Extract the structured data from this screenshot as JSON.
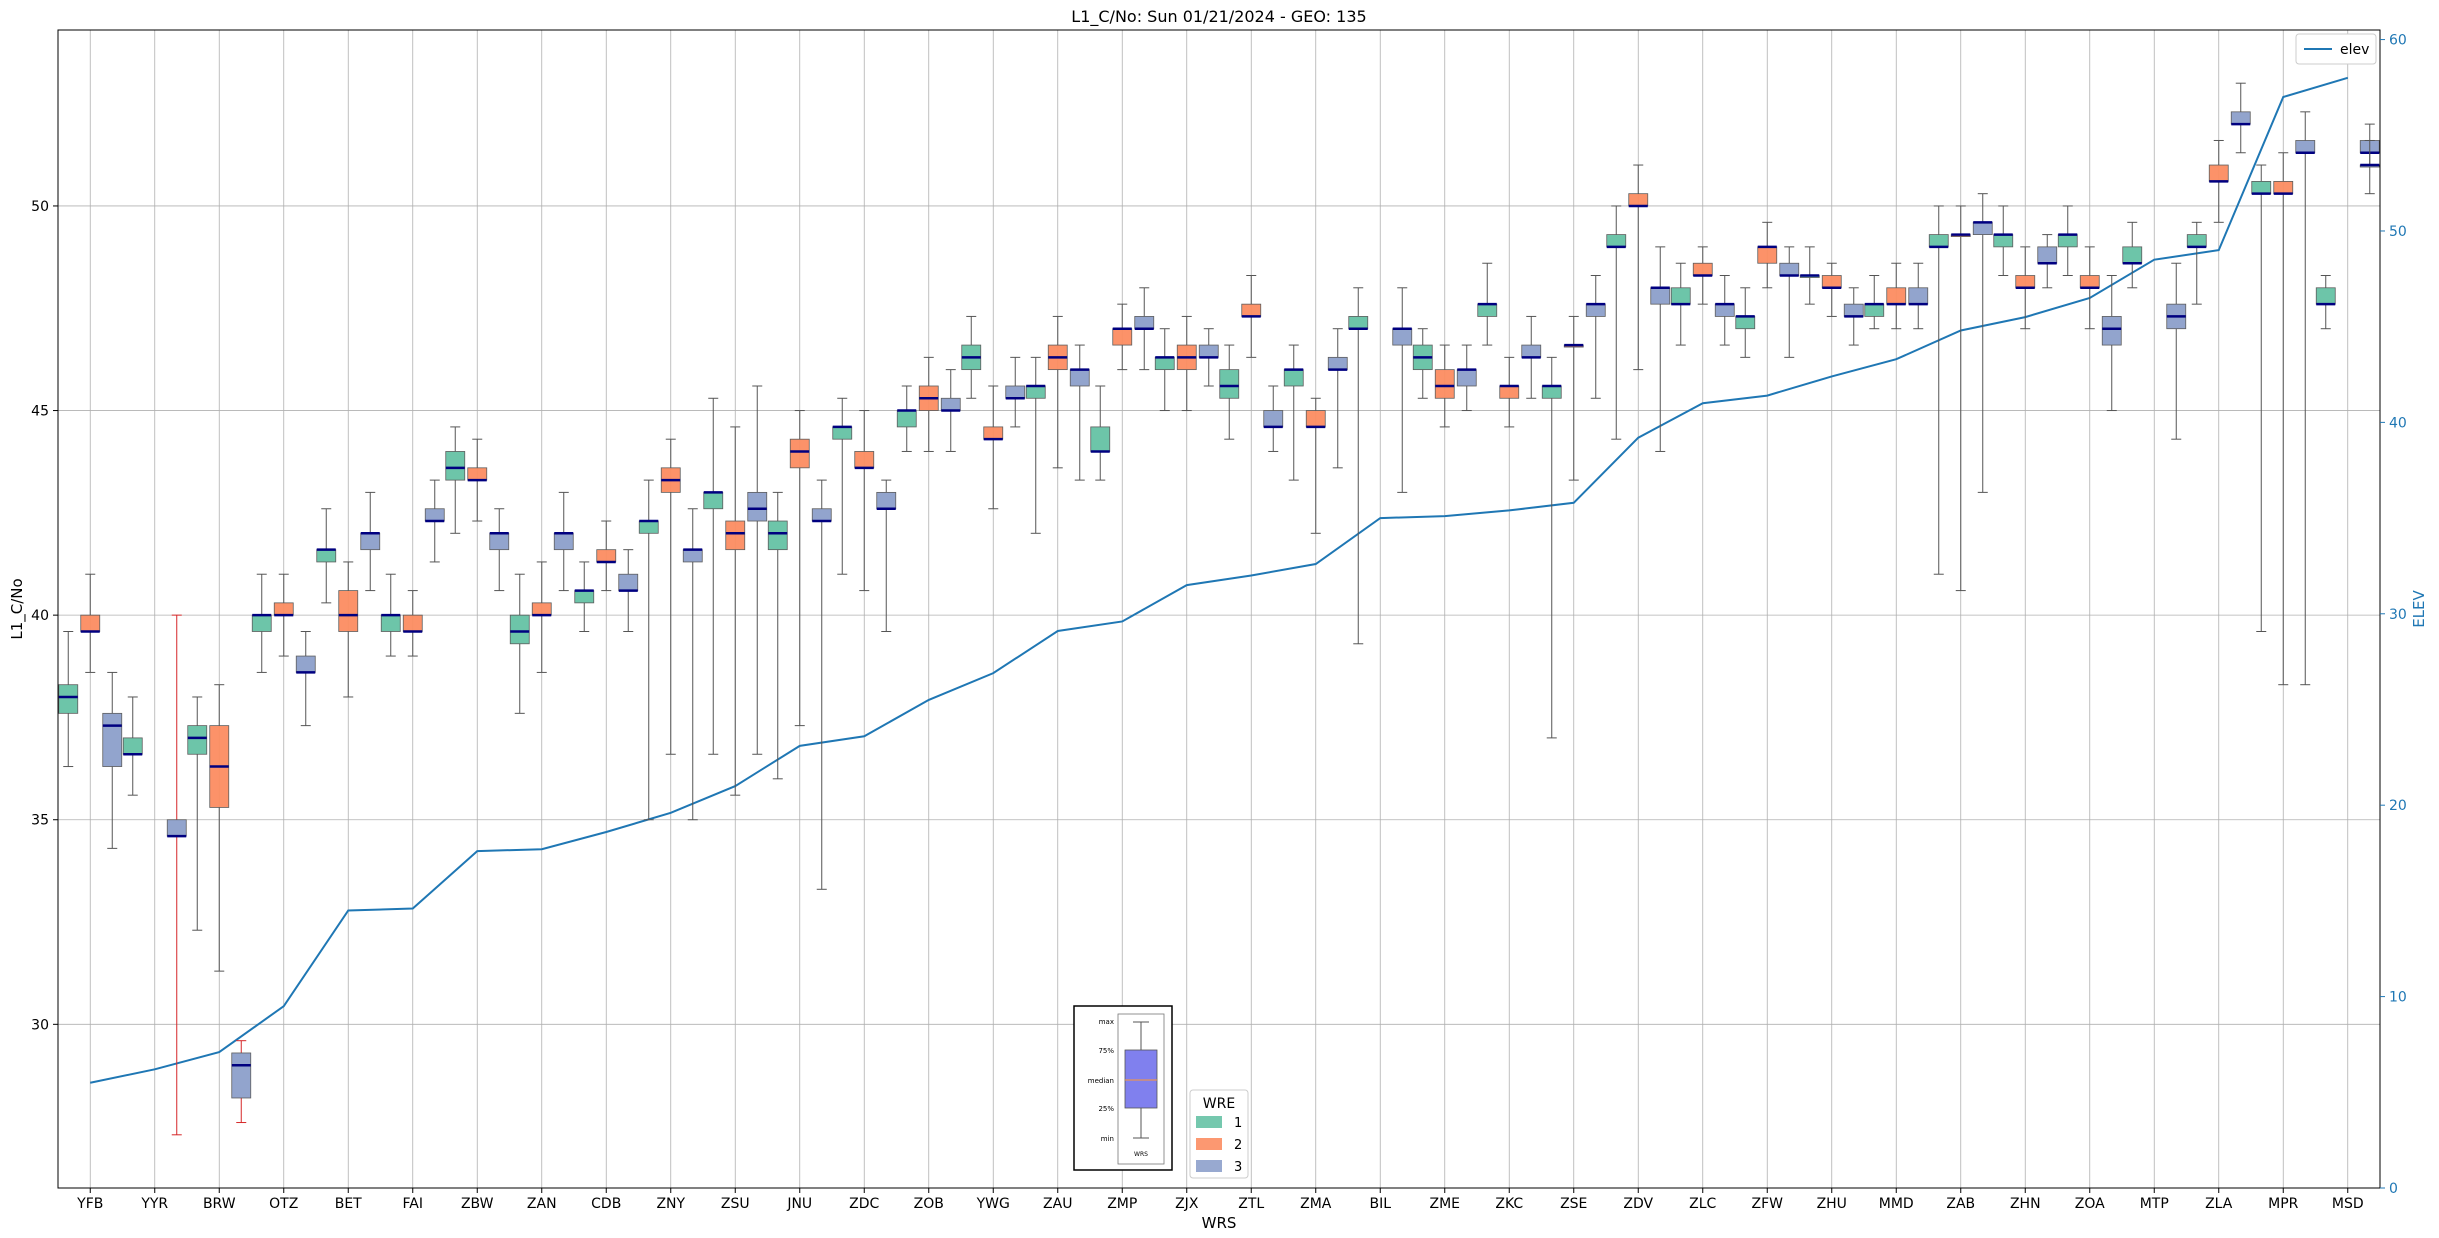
{
  "chart_data": {
    "type": "box",
    "title": "L1_C/No: Sun 01/21/2024 - GEO: 135",
    "xlabel": "WRS",
    "ylabel": "L1_C/No",
    "y2label": "ELEV",
    "ylim": [
      26.0,
      54.3
    ],
    "y2lim": [
      0,
      60.5
    ],
    "yticks": [
      30,
      35,
      40,
      45,
      50
    ],
    "y2ticks": [
      0,
      10,
      20,
      30,
      40,
      50,
      60
    ],
    "grid": true,
    "categories": [
      "YFB",
      "YYR",
      "BRW",
      "OTZ",
      "BET",
      "FAI",
      "ZBW",
      "ZAN",
      "CDB",
      "ZNY",
      "ZSU",
      "JNU",
      "ZDC",
      "ZOB",
      "YWG",
      "ZAU",
      "ZMP",
      "ZJX",
      "ZTL",
      "ZMA",
      "BIL",
      "ZME",
      "ZKC",
      "ZSE",
      "ZDV",
      "ZLC",
      "ZFW",
      "ZHU",
      "MMD",
      "ZAB",
      "ZHN",
      "ZOA",
      "MTP",
      "ZLA",
      "MPR",
      "MSD"
    ],
    "wre_legend": {
      "title": "WRE",
      "entries": [
        "1",
        "2",
        "3"
      ]
    },
    "colors": {
      "1": "#66c2a5",
      "2": "#fc8d62",
      "3": "#8da0cb",
      "median": "#000080",
      "elev_line": "#1f77b4",
      "outlier_whisker": "#d62728",
      "whisker": "#555555"
    },
    "elev_series": {
      "name": "elev",
      "values": [
        5.5,
        6.2,
        7.1,
        9.5,
        14.5,
        14.6,
        17.6,
        17.7,
        18.6,
        19.6,
        21.0,
        23.1,
        23.6,
        25.5,
        26.9,
        29.1,
        29.6,
        31.5,
        32.0,
        32.6,
        35.0,
        35.1,
        35.4,
        35.8,
        39.2,
        41.0,
        41.4,
        42.4,
        43.3,
        44.8,
        45.5,
        46.5,
        48.5,
        49.0,
        57.0,
        58.0
      ]
    },
    "boxes": [
      {
        "cat": "YFB",
        "wre": "1",
        "min": 36.3,
        "q1": 37.6,
        "med": 38.0,
        "q3": 38.3,
        "max": 39.6
      },
      {
        "cat": "YFB",
        "wre": "2",
        "min": 38.6,
        "q1": 39.6,
        "med": 39.6,
        "q3": 40.0,
        "max": 41.0
      },
      {
        "cat": "YFB",
        "wre": "3",
        "min": 34.3,
        "q1": 36.3,
        "med": 37.3,
        "q3": 37.6,
        "max": 38.6
      },
      {
        "cat": "YYR",
        "wre": "1",
        "min": 35.6,
        "q1": 36.6,
        "med": 36.6,
        "q3": 37.0,
        "max": 38.0
      },
      {
        "cat": "YYR",
        "wre": "3",
        "min": 27.3,
        "q1": 34.6,
        "med": 34.6,
        "q3": 35.0,
        "max": 40.0,
        "whisker_color": "red"
      },
      {
        "cat": "BRW",
        "wre": "1",
        "min": 32.3,
        "q1": 36.6,
        "med": 37.0,
        "q3": 37.3,
        "max": 38.0
      },
      {
        "cat": "BRW",
        "wre": "2",
        "min": 31.3,
        "q1": 35.3,
        "med": 36.3,
        "q3": 37.3,
        "max": 38.3
      },
      {
        "cat": "BRW",
        "wre": "3",
        "min": 27.6,
        "q1": 28.2,
        "med": 29.0,
        "q3": 29.3,
        "max": 29.6,
        "whisker_color": "red"
      },
      {
        "cat": "OTZ",
        "wre": "1",
        "min": 38.6,
        "q1": 39.6,
        "med": 40.0,
        "q3": 40.0,
        "max": 41.0
      },
      {
        "cat": "OTZ",
        "wre": "2",
        "min": 39.0,
        "q1": 40.0,
        "med": 40.0,
        "q3": 40.3,
        "max": 41.0
      },
      {
        "cat": "OTZ",
        "wre": "3",
        "min": 37.3,
        "q1": 38.6,
        "med": 38.6,
        "q3": 39.0,
        "max": 39.6
      },
      {
        "cat": "BET",
        "wre": "1",
        "min": 40.3,
        "q1": 41.3,
        "med": 41.6,
        "q3": 41.6,
        "max": 42.6
      },
      {
        "cat": "BET",
        "wre": "2",
        "min": 38.0,
        "q1": 39.6,
        "med": 40.0,
        "q3": 40.6,
        "max": 41.3
      },
      {
        "cat": "BET",
        "wre": "3",
        "min": 40.6,
        "q1": 41.6,
        "med": 42.0,
        "q3": 42.0,
        "max": 43.0
      },
      {
        "cat": "FAI",
        "wre": "1",
        "min": 39.0,
        "q1": 39.6,
        "med": 40.0,
        "q3": 40.0,
        "max": 41.0
      },
      {
        "cat": "FAI",
        "wre": "2",
        "min": 39.0,
        "q1": 39.6,
        "med": 39.6,
        "q3": 40.0,
        "max": 40.6
      },
      {
        "cat": "FAI",
        "wre": "3",
        "min": 41.3,
        "q1": 42.3,
        "med": 42.3,
        "q3": 42.6,
        "max": 43.3
      },
      {
        "cat": "ZBW",
        "wre": "1",
        "min": 42.0,
        "q1": 43.3,
        "med": 43.6,
        "q3": 44.0,
        "max": 44.6
      },
      {
        "cat": "ZBW",
        "wre": "2",
        "min": 42.3,
        "q1": 43.3,
        "med": 43.3,
        "q3": 43.6,
        "max": 44.3
      },
      {
        "cat": "ZBW",
        "wre": "3",
        "min": 40.6,
        "q1": 41.6,
        "med": 42.0,
        "q3": 42.0,
        "max": 42.6
      },
      {
        "cat": "ZAN",
        "wre": "1",
        "min": 37.6,
        "q1": 39.3,
        "med": 39.6,
        "q3": 40.0,
        "max": 41.0
      },
      {
        "cat": "ZAN",
        "wre": "2",
        "min": 38.6,
        "q1": 40.0,
        "med": 40.0,
        "q3": 40.3,
        "max": 41.3
      },
      {
        "cat": "ZAN",
        "wre": "3",
        "min": 40.6,
        "q1": 41.6,
        "med": 42.0,
        "q3": 42.0,
        "max": 43.0
      },
      {
        "cat": "CDB",
        "wre": "1",
        "min": 39.6,
        "q1": 40.3,
        "med": 40.6,
        "q3": 40.6,
        "max": 41.3
      },
      {
        "cat": "CDB",
        "wre": "2",
        "min": 40.6,
        "q1": 41.3,
        "med": 41.3,
        "q3": 41.6,
        "max": 42.3
      },
      {
        "cat": "CDB",
        "wre": "3",
        "min": 39.6,
        "q1": 40.6,
        "med": 40.6,
        "q3": 41.0,
        "max": 41.6
      },
      {
        "cat": "ZNY",
        "wre": "1",
        "min": 35.0,
        "q1": 42.0,
        "med": 42.3,
        "q3": 42.3,
        "max": 43.3
      },
      {
        "cat": "ZNY",
        "wre": "2",
        "min": 36.6,
        "q1": 43.0,
        "med": 43.3,
        "q3": 43.6,
        "max": 44.3
      },
      {
        "cat": "ZNY",
        "wre": "3",
        "min": 35.0,
        "q1": 41.3,
        "med": 41.6,
        "q3": 41.6,
        "max": 42.6
      },
      {
        "cat": "ZSU",
        "wre": "1",
        "min": 36.6,
        "q1": 42.6,
        "med": 43.0,
        "q3": 43.0,
        "max": 45.3
      },
      {
        "cat": "ZSU",
        "wre": "2",
        "min": 35.6,
        "q1": 41.6,
        "med": 42.0,
        "q3": 42.3,
        "max": 44.6
      },
      {
        "cat": "ZSU",
        "wre": "3",
        "min": 36.6,
        "q1": 42.3,
        "med": 42.6,
        "q3": 43.0,
        "max": 45.6
      },
      {
        "cat": "JNU",
        "wre": "1",
        "min": 36.0,
        "q1": 41.6,
        "med": 42.0,
        "q3": 42.3,
        "max": 43.0
      },
      {
        "cat": "JNU",
        "wre": "2",
        "min": 37.3,
        "q1": 43.6,
        "med": 44.0,
        "q3": 44.3,
        "max": 45.0
      },
      {
        "cat": "JNU",
        "wre": "3",
        "min": 33.3,
        "q1": 42.3,
        "med": 42.3,
        "q3": 42.6,
        "max": 43.3
      },
      {
        "cat": "ZDC",
        "wre": "1",
        "min": 41.0,
        "q1": 44.3,
        "med": 44.6,
        "q3": 44.6,
        "max": 45.3
      },
      {
        "cat": "ZDC",
        "wre": "2",
        "min": 40.6,
        "q1": 43.6,
        "med": 43.6,
        "q3": 44.0,
        "max": 45.0
      },
      {
        "cat": "ZDC",
        "wre": "3",
        "min": 39.6,
        "q1": 42.6,
        "med": 42.6,
        "q3": 43.0,
        "max": 43.3
      },
      {
        "cat": "ZOB",
        "wre": "1",
        "min": 44.0,
        "q1": 44.6,
        "med": 45.0,
        "q3": 45.0,
        "max": 45.6
      },
      {
        "cat": "ZOB",
        "wre": "2",
        "min": 44.0,
        "q1": 45.0,
        "med": 45.3,
        "q3": 45.6,
        "max": 46.3
      },
      {
        "cat": "ZOB",
        "wre": "3",
        "min": 44.0,
        "q1": 45.0,
        "med": 45.0,
        "q3": 45.3,
        "max": 46.0
      },
      {
        "cat": "YWG",
        "wre": "1",
        "min": 45.3,
        "q1": 46.0,
        "med": 46.3,
        "q3": 46.6,
        "max": 47.3
      },
      {
        "cat": "YWG",
        "wre": "2",
        "min": 42.6,
        "q1": 44.3,
        "med": 44.3,
        "q3": 44.6,
        "max": 45.6
      },
      {
        "cat": "YWG",
        "wre": "3",
        "min": 44.6,
        "q1": 45.3,
        "med": 45.3,
        "q3": 45.6,
        "max": 46.3
      },
      {
        "cat": "ZAU",
        "wre": "1",
        "min": 42.0,
        "q1": 45.3,
        "med": 45.6,
        "q3": 45.6,
        "max": 46.3
      },
      {
        "cat": "ZAU",
        "wre": "2",
        "min": 43.6,
        "q1": 46.0,
        "med": 46.3,
        "q3": 46.6,
        "max": 47.3
      },
      {
        "cat": "ZAU",
        "wre": "3",
        "min": 43.3,
        "q1": 45.6,
        "med": 46.0,
        "q3": 46.0,
        "max": 46.6
      },
      {
        "cat": "ZMP",
        "wre": "1",
        "min": 43.3,
        "q1": 44.0,
        "med": 44.0,
        "q3": 44.6,
        "max": 45.6
      },
      {
        "cat": "ZMP",
        "wre": "2",
        "min": 46.0,
        "q1": 46.6,
        "med": 47.0,
        "q3": 47.0,
        "max": 47.6
      },
      {
        "cat": "ZMP",
        "wre": "3",
        "min": 46.0,
        "q1": 47.0,
        "med": 47.0,
        "q3": 47.3,
        "max": 48.0
      },
      {
        "cat": "ZJX",
        "wre": "1",
        "min": 45.0,
        "q1": 46.0,
        "med": 46.3,
        "q3": 46.3,
        "max": 47.0
      },
      {
        "cat": "ZJX",
        "wre": "2",
        "min": 45.0,
        "q1": 46.0,
        "med": 46.3,
        "q3": 46.6,
        "max": 47.3
      },
      {
        "cat": "ZJX",
        "wre": "3",
        "min": 45.6,
        "q1": 46.3,
        "med": 46.3,
        "q3": 46.6,
        "max": 47.0
      },
      {
        "cat": "ZTL",
        "wre": "1",
        "min": 44.3,
        "q1": 45.3,
        "med": 45.6,
        "q3": 46.0,
        "max": 46.6
      },
      {
        "cat": "ZTL",
        "wre": "2",
        "min": 46.3,
        "q1": 47.3,
        "med": 47.3,
        "q3": 47.6,
        "max": 48.3
      },
      {
        "cat": "ZTL",
        "wre": "3",
        "min": 44.0,
        "q1": 44.6,
        "med": 44.6,
        "q3": 45.0,
        "max": 45.6
      },
      {
        "cat": "ZMA",
        "wre": "1",
        "min": 43.3,
        "q1": 45.6,
        "med": 46.0,
        "q3": 46.0,
        "max": 46.6
      },
      {
        "cat": "ZMA",
        "wre": "2",
        "min": 42.0,
        "q1": 44.6,
        "med": 44.6,
        "q3": 45.0,
        "max": 45.3
      },
      {
        "cat": "ZMA",
        "wre": "3",
        "min": 43.6,
        "q1": 46.0,
        "med": 46.0,
        "q3": 46.3,
        "max": 47.0
      },
      {
        "cat": "BIL",
        "wre": "1",
        "min": 39.3,
        "q1": 47.0,
        "med": 47.0,
        "q3": 47.3,
        "max": 48.0
      },
      {
        "cat": "BIL",
        "wre": "3",
        "min": 43.0,
        "q1": 46.6,
        "med": 47.0,
        "q3": 47.0,
        "max": 48.0
      },
      {
        "cat": "ZME",
        "wre": "1",
        "min": 45.3,
        "q1": 46.0,
        "med": 46.3,
        "q3": 46.6,
        "max": 47.0
      },
      {
        "cat": "ZME",
        "wre": "2",
        "min": 44.6,
        "q1": 45.3,
        "med": 45.6,
        "q3": 46.0,
        "max": 46.6
      },
      {
        "cat": "ZME",
        "wre": "3",
        "min": 45.0,
        "q1": 45.6,
        "med": 46.0,
        "q3": 46.0,
        "max": 46.6
      },
      {
        "cat": "ZKC",
        "wre": "1",
        "min": 46.6,
        "q1": 47.3,
        "med": 47.6,
        "q3": 47.6,
        "max": 48.6
      },
      {
        "cat": "ZKC",
        "wre": "2",
        "min": 44.6,
        "q1": 45.3,
        "med": 45.6,
        "q3": 45.6,
        "max": 46.3
      },
      {
        "cat": "ZKC",
        "wre": "3",
        "min": 45.3,
        "q1": 46.3,
        "med": 46.3,
        "q3": 46.6,
        "max": 47.3
      },
      {
        "cat": "ZSE",
        "wre": "1",
        "min": 37.0,
        "q1": 45.3,
        "med": 45.6,
        "q3": 45.6,
        "max": 46.3
      },
      {
        "cat": "ZSE",
        "wre": "2",
        "min": 43.3,
        "q1": 46.6,
        "med": 46.6,
        "q3": 46.6,
        "max": 47.3
      },
      {
        "cat": "ZSE",
        "wre": "3",
        "min": 45.3,
        "q1": 47.3,
        "med": 47.6,
        "q3": 47.6,
        "max": 48.3
      },
      {
        "cat": "ZDV",
        "wre": "1",
        "min": 44.3,
        "q1": 49.0,
        "med": 49.0,
        "q3": 49.3,
        "max": 50.0
      },
      {
        "cat": "ZDV",
        "wre": "2",
        "min": 46.0,
        "q1": 50.0,
        "med": 50.0,
        "q3": 50.3,
        "max": 51.0
      },
      {
        "cat": "ZDV",
        "wre": "3",
        "min": 44.0,
        "q1": 47.6,
        "med": 48.0,
        "q3": 48.0,
        "max": 49.0
      },
      {
        "cat": "ZLC",
        "wre": "1",
        "min": 46.6,
        "q1": 47.6,
        "med": 47.6,
        "q3": 48.0,
        "max": 48.6
      },
      {
        "cat": "ZLC",
        "wre": "2",
        "min": 47.6,
        "q1": 48.3,
        "med": 48.3,
        "q3": 48.6,
        "max": 49.0
      },
      {
        "cat": "ZLC",
        "wre": "3",
        "min": 46.6,
        "q1": 47.3,
        "med": 47.6,
        "q3": 47.6,
        "max": 48.3
      },
      {
        "cat": "ZFW",
        "wre": "1",
        "min": 46.3,
        "q1": 47.0,
        "med": 47.3,
        "q3": 47.3,
        "max": 48.0
      },
      {
        "cat": "ZFW",
        "wre": "2",
        "min": 48.0,
        "q1": 48.6,
        "med": 49.0,
        "q3": 49.0,
        "max": 49.6
      },
      {
        "cat": "ZFW",
        "wre": "3",
        "min": 46.3,
        "q1": 48.3,
        "med": 48.3,
        "q3": 48.6,
        "max": 49.0
      },
      {
        "cat": "ZHU",
        "wre": "1",
        "min": 47.6,
        "q1": 48.3,
        "med": 48.3,
        "q3": 48.3,
        "max": 49.0
      },
      {
        "cat": "ZHU",
        "wre": "2",
        "min": 47.3,
        "q1": 48.0,
        "med": 48.0,
        "q3": 48.3,
        "max": 48.6
      },
      {
        "cat": "ZHU",
        "wre": "3",
        "min": 46.6,
        "q1": 47.3,
        "med": 47.3,
        "q3": 47.6,
        "max": 48.0
      },
      {
        "cat": "MMD",
        "wre": "1",
        "min": 47.0,
        "q1": 47.3,
        "med": 47.6,
        "q3": 47.6,
        "max": 48.3
      },
      {
        "cat": "MMD",
        "wre": "2",
        "min": 47.0,
        "q1": 47.6,
        "med": 47.6,
        "q3": 48.0,
        "max": 48.6
      },
      {
        "cat": "MMD",
        "wre": "3",
        "min": 47.0,
        "q1": 47.6,
        "med": 47.6,
        "q3": 48.0,
        "max": 48.6
      },
      {
        "cat": "ZAB",
        "wre": "1",
        "min": 41.0,
        "q1": 49.0,
        "med": 49.0,
        "q3": 49.3,
        "max": 50.0
      },
      {
        "cat": "ZAB",
        "wre": "2",
        "min": 40.6,
        "q1": 49.3,
        "med": 49.3,
        "q3": 49.3,
        "max": 50.0
      },
      {
        "cat": "ZAB",
        "wre": "3",
        "min": 43.0,
        "q1": 49.3,
        "med": 49.6,
        "q3": 49.6,
        "max": 50.3
      },
      {
        "cat": "ZHN",
        "wre": "1",
        "min": 48.3,
        "q1": 49.0,
        "med": 49.3,
        "q3": 49.3,
        "max": 50.0
      },
      {
        "cat": "ZHN",
        "wre": "2",
        "min": 47.0,
        "q1": 48.0,
        "med": 48.0,
        "q3": 48.3,
        "max": 49.0
      },
      {
        "cat": "ZHN",
        "wre": "3",
        "min": 48.0,
        "q1": 48.6,
        "med": 48.6,
        "q3": 49.0,
        "max": 49.3
      },
      {
        "cat": "ZOA",
        "wre": "1",
        "min": 48.3,
        "q1": 49.0,
        "med": 49.3,
        "q3": 49.3,
        "max": 50.0
      },
      {
        "cat": "ZOA",
        "wre": "2",
        "min": 47.0,
        "q1": 48.0,
        "med": 48.0,
        "q3": 48.3,
        "max": 49.0
      },
      {
        "cat": "ZOA",
        "wre": "3",
        "min": 45.0,
        "q1": 46.6,
        "med": 47.0,
        "q3": 47.3,
        "max": 48.3
      },
      {
        "cat": "MTP",
        "wre": "1",
        "min": 48.0,
        "q1": 48.6,
        "med": 48.6,
        "q3": 49.0,
        "max": 49.6
      },
      {
        "cat": "MTP",
        "wre": "3",
        "min": 44.3,
        "q1": 47.0,
        "med": 47.3,
        "q3": 47.6,
        "max": 48.6
      },
      {
        "cat": "ZLA",
        "wre": "1",
        "min": 47.6,
        "q1": 49.0,
        "med": 49.0,
        "q3": 49.3,
        "max": 49.6
      },
      {
        "cat": "ZLA",
        "wre": "2",
        "min": 49.6,
        "q1": 50.6,
        "med": 50.6,
        "q3": 51.0,
        "max": 51.6
      },
      {
        "cat": "ZLA",
        "wre": "3",
        "min": 51.3,
        "q1": 52.0,
        "med": 52.0,
        "q3": 52.3,
        "max": 53.0
      },
      {
        "cat": "MPR",
        "wre": "1",
        "min": 39.6,
        "q1": 50.3,
        "med": 50.3,
        "q3": 50.6,
        "max": 51.0
      },
      {
        "cat": "MPR",
        "wre": "2",
        "min": 38.3,
        "q1": 50.3,
        "med": 50.3,
        "q3": 50.6,
        "max": 51.3
      },
      {
        "cat": "MPR",
        "wre": "3",
        "min": 38.3,
        "q1": 51.3,
        "med": 51.3,
        "q3": 51.6,
        "max": 52.3
      },
      {
        "cat": "MSD",
        "wre": "1",
        "min": 47.0,
        "q1": 47.6,
        "med": 47.6,
        "q3": 48.0,
        "max": 48.3
      },
      {
        "cat": "MSD",
        "wre": "3",
        "min": 51.0,
        "q1": 51.3,
        "med": 51.3,
        "q3": 51.6,
        "max": 52.0
      },
      {
        "cat": "MSD",
        "wre": "3",
        "min": 50.3,
        "q1": 51.0,
        "med": 51.0,
        "q3": 51.0,
        "max": 51.6
      }
    ],
    "elev_legend": {
      "label": "elev"
    },
    "inset_key": {
      "labels": [
        "max",
        "75%",
        "median",
        "25%",
        "min"
      ],
      "xlabel": "WRS"
    }
  }
}
